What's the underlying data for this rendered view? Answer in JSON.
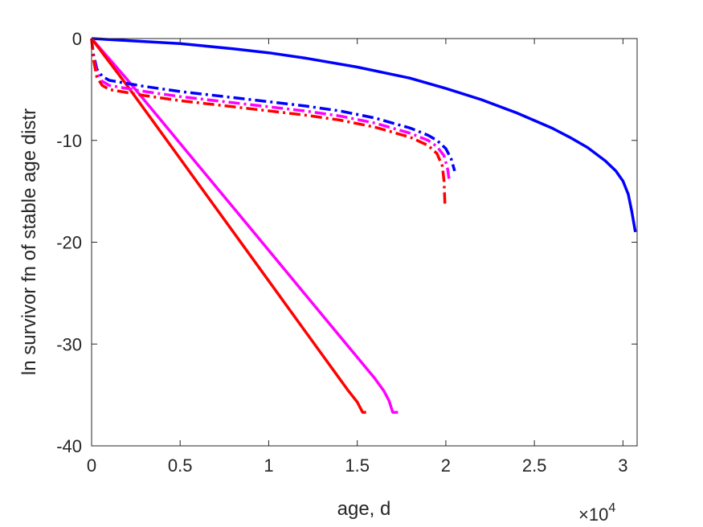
{
  "chart_data": {
    "type": "line",
    "title": "",
    "xlabel": "age, d",
    "ylabel": "ln survivor fn of stable age distr",
    "x_multiplier_label": "×10",
    "x_multiplier_exp": "4",
    "xlim": [
      0,
      30800
    ],
    "ylim": [
      -40,
      0
    ],
    "grid": false,
    "legend": "none",
    "xticks": [
      0,
      5000,
      10000,
      15000,
      20000,
      25000,
      30000
    ],
    "xtick_labels": [
      "0",
      "0.5",
      "1",
      "1.5",
      "2",
      "2.5",
      "3"
    ],
    "yticks": [
      0,
      -10,
      -20,
      -30,
      -40
    ],
    "ytick_labels": [
      "0",
      "-10",
      "-20",
      "-30",
      "-40"
    ],
    "series": [
      {
        "color": "#0000ff",
        "style": "solid",
        "x": [
          0,
          2000,
          5000,
          8000,
          10000,
          12000,
          15000,
          18000,
          20000,
          22000,
          24000,
          26000,
          27000,
          28000,
          29000,
          29600,
          30000,
          30300,
          30500,
          30700
        ],
        "y": [
          0,
          -0.2,
          -0.5,
          -1.0,
          -1.4,
          -1.9,
          -2.8,
          -3.9,
          -4.9,
          -6.0,
          -7.3,
          -8.8,
          -9.7,
          -10.7,
          -12.0,
          -13.0,
          -14.0,
          -15.3,
          -17.0,
          -19.0
        ]
      },
      {
        "color": "#ff00ff",
        "style": "solid",
        "x": [
          0,
          2000,
          4000,
          6000,
          8000,
          10000,
          12000,
          14000,
          15000,
          16000,
          16500,
          16800,
          17000,
          17300
        ],
        "y": [
          0,
          -4.0,
          -8.2,
          -12.4,
          -16.6,
          -20.8,
          -25.0,
          -29.2,
          -31.3,
          -33.4,
          -34.6,
          -35.6,
          -36.7,
          -36.7
        ]
      },
      {
        "color": "#ff0000",
        "style": "solid",
        "x": [
          0,
          2000,
          4000,
          6000,
          8000,
          10000,
          12000,
          14000,
          14500,
          15000,
          15300,
          15500
        ],
        "y": [
          0,
          -4.6,
          -9.4,
          -14.2,
          -19.0,
          -23.8,
          -28.6,
          -33.4,
          -34.6,
          -35.7,
          -36.7,
          -36.7
        ]
      },
      {
        "color": "#0000ff",
        "style": "dashdot",
        "x": [
          0,
          100,
          300,
          600,
          1000,
          3000,
          5000,
          8000,
          10000,
          12000,
          14000,
          16000,
          18000,
          19000,
          19500,
          20000,
          20300,
          20500
        ],
        "y": [
          0,
          -1.5,
          -3.0,
          -3.7,
          -4.1,
          -4.7,
          -5.2,
          -5.8,
          -6.2,
          -6.6,
          -7.1,
          -7.8,
          -8.8,
          -9.5,
          -10.0,
          -10.8,
          -11.8,
          -13.0
        ]
      },
      {
        "color": "#ff00ff",
        "style": "dashdot",
        "x": [
          0,
          100,
          300,
          600,
          1000,
          3000,
          5000,
          8000,
          10000,
          12000,
          14000,
          16000,
          18000,
          19000,
          19500,
          19900,
          20100,
          20200
        ],
        "y": [
          0,
          -1.8,
          -3.4,
          -4.2,
          -4.6,
          -5.2,
          -5.7,
          -6.3,
          -6.7,
          -7.1,
          -7.6,
          -8.3,
          -9.3,
          -10.0,
          -10.6,
          -11.5,
          -12.8,
          -14.0
        ]
      },
      {
        "color": "#ff0000",
        "style": "dashdot",
        "x": [
          0,
          100,
          300,
          600,
          1000,
          3000,
          5000,
          8000,
          10000,
          12000,
          14000,
          16000,
          18000,
          19000,
          19500,
          19800,
          19900,
          19950
        ],
        "y": [
          0,
          -2.0,
          -3.8,
          -4.6,
          -5.0,
          -5.6,
          -6.1,
          -6.7,
          -7.1,
          -7.5,
          -8.0,
          -8.7,
          -9.7,
          -10.5,
          -11.3,
          -12.5,
          -14.0,
          -16.3
        ]
      }
    ]
  }
}
